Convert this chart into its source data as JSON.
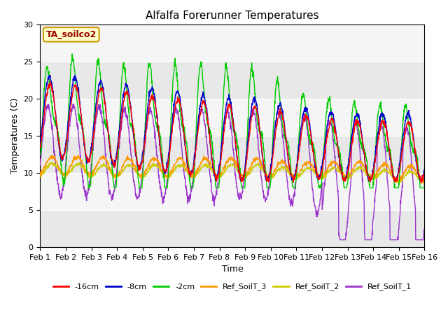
{
  "title": "Alfalfa Forerunner Temperatures",
  "xlabel": "Time",
  "ylabel": "Temperatures (C)",
  "ylim": [
    0,
    30
  ],
  "xlim": [
    0,
    15
  ],
  "x_tick_labels": [
    "Feb 1",
    "Feb 2",
    "Feb 3",
    "Feb 4",
    "Feb 5",
    "Feb 6",
    "Feb 7",
    "Feb 8",
    "Feb 9",
    "Feb 10",
    "Feb 11",
    "Feb 12",
    "Feb 13",
    "Feb 14",
    "Feb 15",
    "Feb 16"
  ],
  "annotation_text": "TA_soilco2",
  "annotation_color": "#990000",
  "annotation_bg": "#ffffcc",
  "annotation_border": "#cc9900",
  "legend_labels": [
    "-16cm",
    "-8cm",
    "-2cm",
    "Ref_SoilT_3",
    "Ref_SoilT_2",
    "Ref_SoilT_1"
  ],
  "legend_colors": [
    "#ff0000",
    "#0000cc",
    "#00cc00",
    "#ff9900",
    "#cccc00",
    "#9933cc"
  ],
  "background_color": "#e8e8e8",
  "grid_color": "#ffffff",
  "title_fontsize": 11,
  "axis_fontsize": 9,
  "tick_fontsize": 8
}
